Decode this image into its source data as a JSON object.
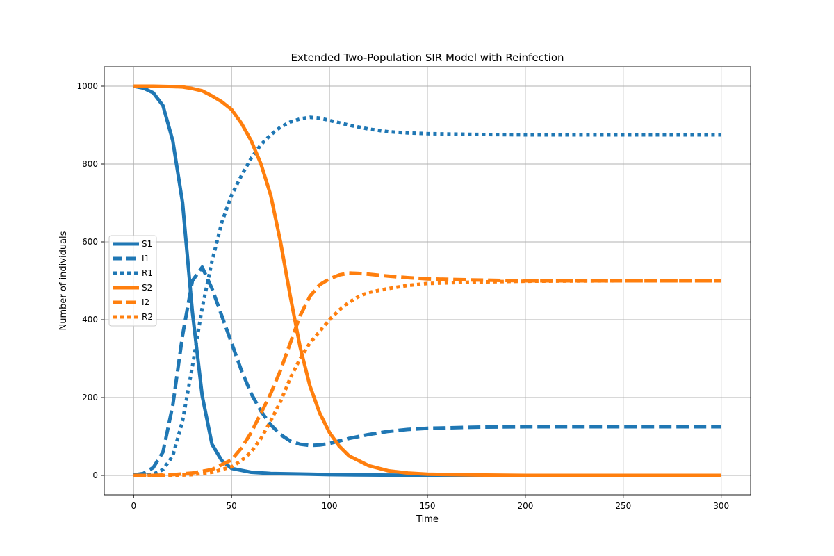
{
  "chart_data": {
    "type": "line",
    "title": "Extended Two-Population SIR Model with Reinfection",
    "xlabel": "Time",
    "ylabel": "Number of individuals",
    "xlim": [
      -15,
      315
    ],
    "ylim": [
      -50,
      1050
    ],
    "xticks": [
      0,
      50,
      100,
      150,
      200,
      250,
      300
    ],
    "yticks": [
      0,
      200,
      400,
      600,
      800,
      1000
    ],
    "grid": true,
    "legend_position": "center-left",
    "series": [
      {
        "name": "S1",
        "color": "#1f77b4",
        "style": "solid",
        "points": [
          [
            0,
            1000
          ],
          [
            5,
            995
          ],
          [
            10,
            983
          ],
          [
            15,
            950
          ],
          [
            20,
            860
          ],
          [
            25,
            700
          ],
          [
            30,
            420
          ],
          [
            35,
            205
          ],
          [
            40,
            80
          ],
          [
            45,
            38
          ],
          [
            50,
            18
          ],
          [
            60,
            8
          ],
          [
            70,
            5
          ],
          [
            80,
            4
          ],
          [
            90,
            3
          ],
          [
            100,
            2
          ],
          [
            120,
            1
          ],
          [
            150,
            0
          ],
          [
            200,
            0
          ],
          [
            250,
            0
          ],
          [
            300,
            0
          ]
        ]
      },
      {
        "name": "I1",
        "color": "#1f77b4",
        "style": "dashed",
        "points": [
          [
            0,
            1
          ],
          [
            5,
            5
          ],
          [
            10,
            20
          ],
          [
            15,
            60
          ],
          [
            20,
            180
          ],
          [
            25,
            360
          ],
          [
            30,
            500
          ],
          [
            35,
            535
          ],
          [
            40,
            480
          ],
          [
            45,
            410
          ],
          [
            50,
            340
          ],
          [
            55,
            270
          ],
          [
            60,
            210
          ],
          [
            65,
            165
          ],
          [
            70,
            130
          ],
          [
            75,
            105
          ],
          [
            80,
            88
          ],
          [
            85,
            80
          ],
          [
            90,
            77
          ],
          [
            95,
            78
          ],
          [
            100,
            82
          ],
          [
            110,
            95
          ],
          [
            120,
            105
          ],
          [
            130,
            113
          ],
          [
            140,
            118
          ],
          [
            150,
            121
          ],
          [
            175,
            124
          ],
          [
            200,
            125
          ],
          [
            250,
            125
          ],
          [
            300,
            125
          ]
        ]
      },
      {
        "name": "R1",
        "color": "#1f77b4",
        "style": "dotted",
        "points": [
          [
            0,
            0
          ],
          [
            5,
            0
          ],
          [
            10,
            3
          ],
          [
            15,
            15
          ],
          [
            20,
            50
          ],
          [
            25,
            140
          ],
          [
            30,
            280
          ],
          [
            35,
            430
          ],
          [
            40,
            550
          ],
          [
            45,
            650
          ],
          [
            50,
            720
          ],
          [
            55,
            770
          ],
          [
            60,
            815
          ],
          [
            65,
            850
          ],
          [
            70,
            875
          ],
          [
            75,
            895
          ],
          [
            80,
            908
          ],
          [
            85,
            916
          ],
          [
            90,
            920
          ],
          [
            95,
            918
          ],
          [
            100,
            912
          ],
          [
            110,
            900
          ],
          [
            120,
            890
          ],
          [
            130,
            883
          ],
          [
            140,
            880
          ],
          [
            150,
            878
          ],
          [
            175,
            876
          ],
          [
            200,
            875
          ],
          [
            250,
            875
          ],
          [
            300,
            875
          ]
        ]
      },
      {
        "name": "S2",
        "color": "#ff7f0e",
        "style": "solid",
        "points": [
          [
            0,
            1000
          ],
          [
            10,
            1000
          ],
          [
            20,
            999
          ],
          [
            25,
            998
          ],
          [
            30,
            994
          ],
          [
            35,
            988
          ],
          [
            40,
            975
          ],
          [
            45,
            960
          ],
          [
            50,
            940
          ],
          [
            55,
            905
          ],
          [
            60,
            860
          ],
          [
            65,
            800
          ],
          [
            70,
            720
          ],
          [
            75,
            600
          ],
          [
            80,
            460
          ],
          [
            85,
            330
          ],
          [
            90,
            230
          ],
          [
            95,
            160
          ],
          [
            100,
            110
          ],
          [
            105,
            75
          ],
          [
            110,
            50
          ],
          [
            120,
            25
          ],
          [
            130,
            12
          ],
          [
            140,
            6
          ],
          [
            150,
            3
          ],
          [
            175,
            1
          ],
          [
            200,
            0
          ],
          [
            250,
            0
          ],
          [
            300,
            0
          ]
        ]
      },
      {
        "name": "I2",
        "color": "#ff7f0e",
        "style": "dashed",
        "points": [
          [
            0,
            0
          ],
          [
            10,
            0
          ],
          [
            20,
            2
          ],
          [
            30,
            6
          ],
          [
            40,
            15
          ],
          [
            50,
            40
          ],
          [
            55,
            70
          ],
          [
            60,
            110
          ],
          [
            65,
            160
          ],
          [
            70,
            210
          ],
          [
            75,
            270
          ],
          [
            80,
            340
          ],
          [
            85,
            410
          ],
          [
            90,
            460
          ],
          [
            95,
            490
          ],
          [
            100,
            505
          ],
          [
            105,
            515
          ],
          [
            110,
            520
          ],
          [
            115,
            519
          ],
          [
            120,
            517
          ],
          [
            130,
            512
          ],
          [
            140,
            508
          ],
          [
            150,
            505
          ],
          [
            175,
            502
          ],
          [
            200,
            500
          ],
          [
            250,
            500
          ],
          [
            300,
            500
          ]
        ]
      },
      {
        "name": "R2",
        "color": "#ff7f0e",
        "style": "dotted",
        "points": [
          [
            0,
            0
          ],
          [
            20,
            0
          ],
          [
            30,
            2
          ],
          [
            40,
            8
          ],
          [
            50,
            22
          ],
          [
            55,
            38
          ],
          [
            60,
            60
          ],
          [
            65,
            95
          ],
          [
            70,
            140
          ],
          [
            75,
            190
          ],
          [
            80,
            250
          ],
          [
            85,
            300
          ],
          [
            90,
            340
          ],
          [
            95,
            370
          ],
          [
            100,
            400
          ],
          [
            105,
            425
          ],
          [
            110,
            445
          ],
          [
            115,
            460
          ],
          [
            120,
            470
          ],
          [
            130,
            480
          ],
          [
            140,
            488
          ],
          [
            150,
            493
          ],
          [
            175,
            497
          ],
          [
            200,
            499
          ],
          [
            250,
            500
          ],
          [
            300,
            500
          ]
        ]
      }
    ]
  }
}
